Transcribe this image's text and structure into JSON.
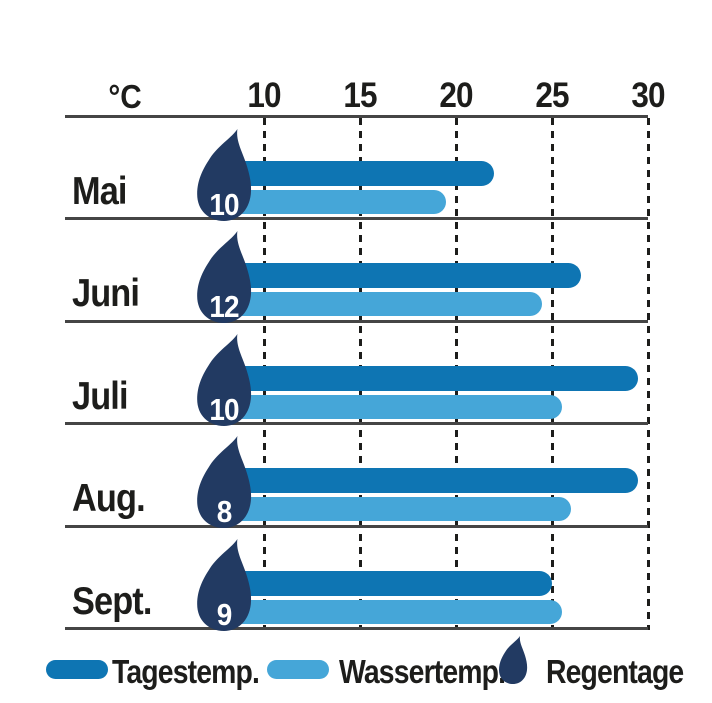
{
  "chart_data": {
    "type": "bar",
    "orientation": "horizontal",
    "title": "",
    "xlabel": "°C",
    "xlim": [
      0,
      30
    ],
    "axis_ticks": [
      10,
      15,
      20,
      25,
      30
    ],
    "grid": "dashed-vertical",
    "legend_position": "bottom",
    "categories": [
      "Mai",
      "Juni",
      "Juli",
      "Aug.",
      "Sept."
    ],
    "series": [
      {
        "name": "Tagestemp.",
        "role": "day-temperature",
        "color": "#0E75B3",
        "unit": "°C",
        "values": [
          22,
          26.5,
          29.5,
          29.5,
          25
        ]
      },
      {
        "name": "Wassertemp.",
        "role": "water-temperature",
        "color": "#45A6D8",
        "unit": "°C",
        "values": [
          19.5,
          24.5,
          25.5,
          26,
          25.5
        ]
      },
      {
        "name": "Regentage",
        "role": "rain-days",
        "color": "#223A62",
        "unit": "days",
        "values": [
          10,
          12,
          10,
          8,
          9
        ]
      }
    ]
  },
  "legend": {
    "items": [
      {
        "label": "Tagestemp.",
        "swatch": "day-bar"
      },
      {
        "label": "Wassertemp.",
        "swatch": "water-bar"
      },
      {
        "label": "Regentage",
        "swatch": "raindrop"
      }
    ]
  },
  "colors": {
    "day_bar": "#0E75B3",
    "water_bar": "#45A6D8",
    "raindrop": "#223A62",
    "text": "#1D1D1B",
    "line": "#454545"
  }
}
